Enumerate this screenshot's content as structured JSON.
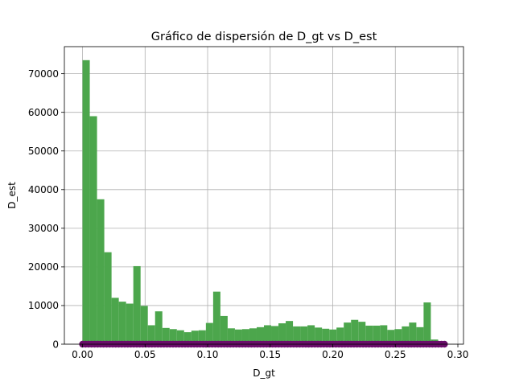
{
  "chart_data": {
    "type": "bar",
    "title": "Gráfico de dispersión de D_gt vs D_est",
    "xlabel": "D_gt",
    "ylabel": "D_est",
    "xlim": [
      -0.0145,
      0.3045
    ],
    "ylim": [
      0,
      77000
    ],
    "grid": true,
    "x_ticks": [
      {
        "value": 0.0,
        "label": "0.00"
      },
      {
        "value": 0.05,
        "label": "0.05"
      },
      {
        "value": 0.1,
        "label": "0.10"
      },
      {
        "value": 0.15,
        "label": "0.15"
      },
      {
        "value": 0.2,
        "label": "0.20"
      },
      {
        "value": 0.25,
        "label": "0.25"
      },
      {
        "value": 0.3,
        "label": "0.30"
      }
    ],
    "y_ticks": [
      {
        "value": 0,
        "label": "0"
      },
      {
        "value": 10000,
        "label": "10000"
      },
      {
        "value": 20000,
        "label": "20000"
      },
      {
        "value": 30000,
        "label": "30000"
      },
      {
        "value": 40000,
        "label": "40000"
      },
      {
        "value": 50000,
        "label": "50000"
      },
      {
        "value": 60000,
        "label": "60000"
      },
      {
        "value": 70000,
        "label": "70000"
      }
    ],
    "histogram": {
      "bin_start": 0.0,
      "bin_width": 0.0058,
      "color": "#4ca64c",
      "counts": [
        73500,
        59000,
        37500,
        23800,
        12000,
        11000,
        10500,
        20200,
        9900,
        4900,
        8500,
        4200,
        3900,
        3600,
        3100,
        3500,
        3600,
        5500,
        13600,
        7300,
        4100,
        3800,
        3900,
        4100,
        4400,
        4900,
        4700,
        5400,
        6000,
        4600,
        4600,
        4900,
        4300,
        4000,
        3800,
        4300,
        5600,
        6300,
        5800,
        4800,
        4800,
        4900,
        3700,
        3900,
        4600,
        5600,
        4400,
        10800,
        1200
      ]
    },
    "scatter": {
      "color": "#6a0d6a",
      "x_min": 0.0,
      "x_max": 0.2893,
      "y": 0
    }
  }
}
